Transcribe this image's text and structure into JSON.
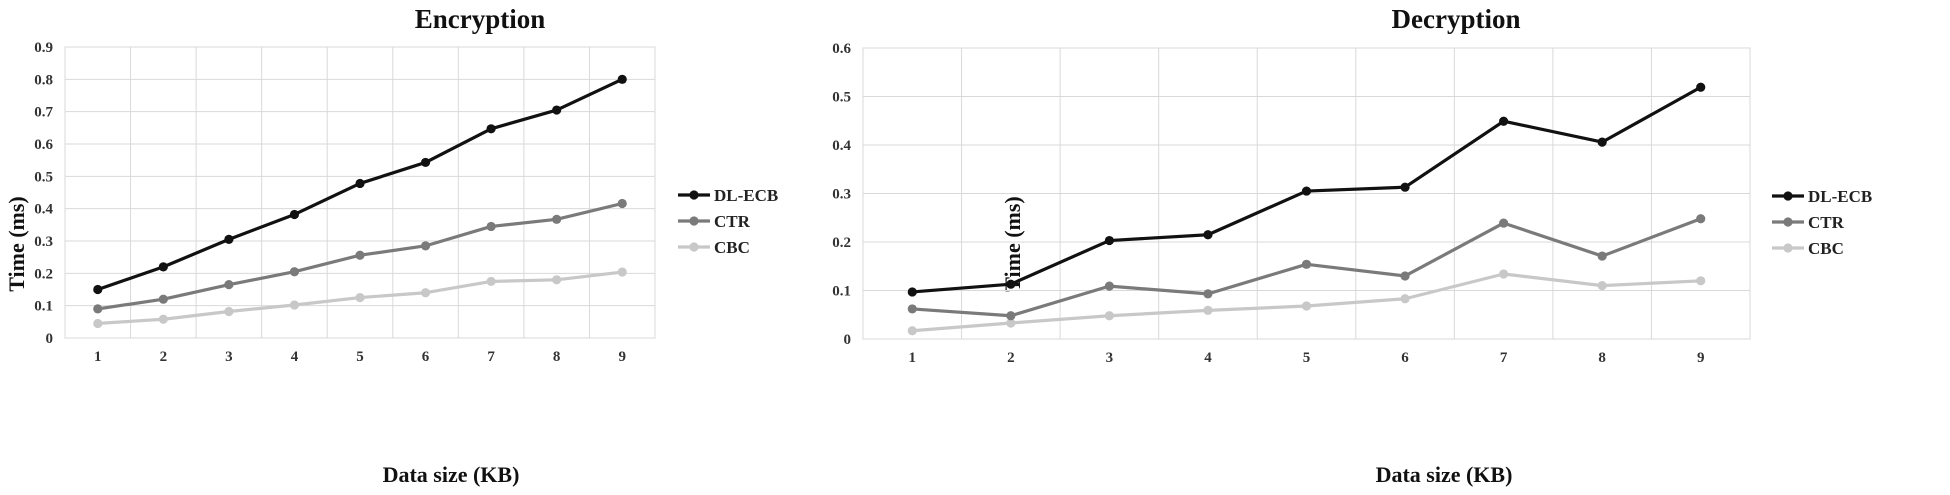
{
  "chart_data": [
    {
      "type": "line",
      "title": "Encryption",
      "xlabel": "Data size (KB)",
      "ylabel": "Time (ms)",
      "categories": [
        "1",
        "2",
        "3",
        "4",
        "5",
        "6",
        "7",
        "8",
        "9"
      ],
      "ylim": [
        0,
        0.9
      ],
      "yticks": [
        "0",
        "0.1",
        "0.2",
        "0.3",
        "0.4",
        "0.5",
        "0.6",
        "0.7",
        "0.8",
        "0.9"
      ],
      "grid": true,
      "legend_position": "right",
      "series": [
        {
          "name": "DL-ECB",
          "color": "#111111",
          "values": [
            0.15,
            0.22,
            0.305,
            0.382,
            0.478,
            0.543,
            0.647,
            0.705,
            0.8
          ]
        },
        {
          "name": "CTR",
          "color": "#7a7a7a",
          "values": [
            0.09,
            0.12,
            0.165,
            0.205,
            0.256,
            0.285,
            0.345,
            0.367,
            0.416
          ]
        },
        {
          "name": "CBC",
          "color": "#c8c8c8",
          "values": [
            0.045,
            0.058,
            0.082,
            0.102,
            0.125,
            0.14,
            0.175,
            0.18,
            0.204
          ]
        }
      ]
    },
    {
      "type": "line",
      "title": "Decryption",
      "xlabel": "Data size (KB)",
      "ylabel": "Time (ms)",
      "categories": [
        "1",
        "2",
        "3",
        "4",
        "5",
        "6",
        "7",
        "8",
        "9"
      ],
      "ylim": [
        0,
        0.6
      ],
      "yticks": [
        "0",
        "0.1",
        "0.2",
        "0.3",
        "0.4",
        "0.5",
        "0.6"
      ],
      "grid": true,
      "legend_position": "right",
      "series": [
        {
          "name": "DL-ECB",
          "color": "#111111",
          "values": [
            0.097,
            0.113,
            0.203,
            0.215,
            0.305,
            0.313,
            0.449,
            0.406,
            0.519
          ]
        },
        {
          "name": "CTR",
          "color": "#7a7a7a",
          "values": [
            0.062,
            0.048,
            0.109,
            0.093,
            0.154,
            0.13,
            0.239,
            0.171,
            0.248
          ]
        },
        {
          "name": "CBC",
          "color": "#c8c8c8",
          "values": [
            0.017,
            0.033,
            0.048,
            0.059,
            0.068,
            0.083,
            0.134,
            0.11,
            0.12
          ]
        }
      ]
    }
  ]
}
